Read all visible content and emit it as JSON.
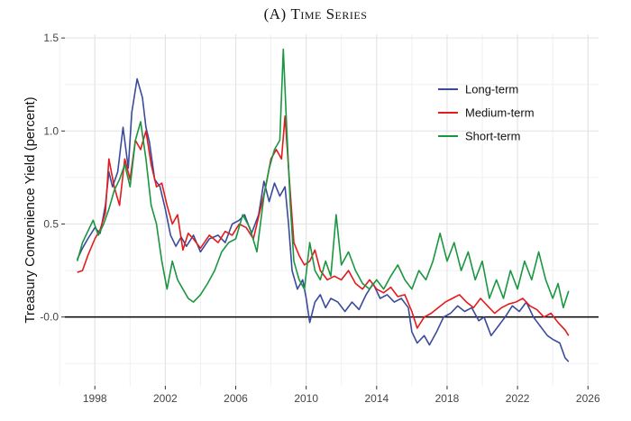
{
  "chart_data": {
    "type": "line",
    "title": "(a) Time Series",
    "xlabel": "",
    "ylabel": "Treasury Convenience Yield (percent)",
    "xlim": [
      1996.3,
      2026.6
    ],
    "ylim": [
      -0.37,
      1.52
    ],
    "x_ticks": [
      "1998",
      "2002",
      "2006",
      "2010",
      "2014",
      "2018",
      "2022",
      "2026"
    ],
    "y_ticks": [
      "-0.0",
      "0.5",
      "1.0",
      "1.5"
    ],
    "y_tick_values": [
      0.0,
      0.5,
      1.0,
      1.5
    ],
    "zero_line": true,
    "grid": true,
    "legend": "top-right",
    "series": [
      {
        "name": "Long-term",
        "color": "#3a4b9c",
        "points": [
          [
            1997.0,
            0.31
          ],
          [
            1997.3,
            0.37
          ],
          [
            1997.6,
            0.42
          ],
          [
            1998.0,
            0.48
          ],
          [
            1998.3,
            0.45
          ],
          [
            1998.6,
            0.6
          ],
          [
            1998.8,
            0.78
          ],
          [
            1999.0,
            0.7
          ],
          [
            1999.3,
            0.78
          ],
          [
            1999.6,
            1.02
          ],
          [
            1999.9,
            0.8
          ],
          [
            2000.1,
            1.1
          ],
          [
            2000.4,
            1.28
          ],
          [
            2000.7,
            1.18
          ],
          [
            2000.9,
            1.02
          ],
          [
            2001.1,
            0.94
          ],
          [
            2001.4,
            0.74
          ],
          [
            2001.7,
            0.7
          ],
          [
            2002.0,
            0.58
          ],
          [
            2002.3,
            0.44
          ],
          [
            2002.6,
            0.38
          ],
          [
            2002.9,
            0.43
          ],
          [
            2003.2,
            0.38
          ],
          [
            2003.6,
            0.44
          ],
          [
            2004.0,
            0.35
          ],
          [
            2004.5,
            0.42
          ],
          [
            2005.0,
            0.44
          ],
          [
            2005.4,
            0.4
          ],
          [
            2005.8,
            0.5
          ],
          [
            2006.2,
            0.52
          ],
          [
            2006.5,
            0.55
          ],
          [
            2006.9,
            0.45
          ],
          [
            2007.3,
            0.55
          ],
          [
            2007.6,
            0.73
          ],
          [
            2007.9,
            0.62
          ],
          [
            2008.2,
            0.72
          ],
          [
            2008.5,
            0.65
          ],
          [
            2008.8,
            0.7
          ],
          [
            2009.0,
            0.5
          ],
          [
            2009.2,
            0.25
          ],
          [
            2009.5,
            0.15
          ],
          [
            2009.8,
            0.2
          ],
          [
            2010.0,
            0.1
          ],
          [
            2010.2,
            -0.03
          ],
          [
            2010.5,
            0.08
          ],
          [
            2010.8,
            0.12
          ],
          [
            2011.1,
            0.05
          ],
          [
            2011.4,
            0.1
          ],
          [
            2011.8,
            0.08
          ],
          [
            2012.2,
            0.03
          ],
          [
            2012.6,
            0.08
          ],
          [
            2013.0,
            0.04
          ],
          [
            2013.4,
            0.12
          ],
          [
            2013.8,
            0.18
          ],
          [
            2014.2,
            0.1
          ],
          [
            2014.6,
            0.12
          ],
          [
            2015.0,
            0.08
          ],
          [
            2015.4,
            0.1
          ],
          [
            2015.8,
            0.05
          ],
          [
            2016.0,
            -0.08
          ],
          [
            2016.3,
            -0.14
          ],
          [
            2016.7,
            -0.1
          ],
          [
            2017.0,
            -0.15
          ],
          [
            2017.4,
            -0.08
          ],
          [
            2017.8,
            0.0
          ],
          [
            2018.2,
            0.02
          ],
          [
            2018.6,
            0.06
          ],
          [
            2019.0,
            0.03
          ],
          [
            2019.4,
            0.05
          ],
          [
            2019.8,
            -0.02
          ],
          [
            2020.1,
            0.0
          ],
          [
            2020.5,
            -0.1
          ],
          [
            2020.9,
            -0.05
          ],
          [
            2021.3,
            0.0
          ],
          [
            2021.7,
            0.06
          ],
          [
            2022.1,
            0.03
          ],
          [
            2022.5,
            0.08
          ],
          [
            2022.9,
            0.0
          ],
          [
            2023.3,
            -0.05
          ],
          [
            2023.7,
            -0.1
          ],
          [
            2024.0,
            -0.12
          ],
          [
            2024.4,
            -0.14
          ],
          [
            2024.7,
            -0.22
          ],
          [
            2024.9,
            -0.24
          ]
        ]
      },
      {
        "name": "Medium-term",
        "color": "#e41a1c",
        "points": [
          [
            1997.0,
            0.24
          ],
          [
            1997.3,
            0.25
          ],
          [
            1997.6,
            0.33
          ],
          [
            1998.0,
            0.42
          ],
          [
            1998.3,
            0.47
          ],
          [
            1998.6,
            0.56
          ],
          [
            1998.8,
            0.85
          ],
          [
            1999.1,
            0.7
          ],
          [
            1999.4,
            0.6
          ],
          [
            1999.7,
            0.85
          ],
          [
            2000.0,
            0.74
          ],
          [
            2000.3,
            0.95
          ],
          [
            2000.6,
            0.9
          ],
          [
            2000.9,
            1.0
          ],
          [
            2001.2,
            0.82
          ],
          [
            2001.5,
            0.7
          ],
          [
            2001.8,
            0.72
          ],
          [
            2002.1,
            0.6
          ],
          [
            2002.4,
            0.5
          ],
          [
            2002.7,
            0.55
          ],
          [
            2003.0,
            0.36
          ],
          [
            2003.3,
            0.45
          ],
          [
            2003.6,
            0.42
          ],
          [
            2004.0,
            0.37
          ],
          [
            2004.5,
            0.44
          ],
          [
            2005.0,
            0.4
          ],
          [
            2005.4,
            0.46
          ],
          [
            2005.8,
            0.44
          ],
          [
            2006.2,
            0.5
          ],
          [
            2006.6,
            0.48
          ],
          [
            2007.0,
            0.42
          ],
          [
            2007.4,
            0.58
          ],
          [
            2007.7,
            0.7
          ],
          [
            2008.0,
            0.85
          ],
          [
            2008.3,
            0.9
          ],
          [
            2008.6,
            0.85
          ],
          [
            2008.8,
            1.08
          ],
          [
            2009.0,
            0.8
          ],
          [
            2009.3,
            0.4
          ],
          [
            2009.6,
            0.33
          ],
          [
            2009.9,
            0.28
          ],
          [
            2010.2,
            0.3
          ],
          [
            2010.5,
            0.36
          ],
          [
            2010.8,
            0.25
          ],
          [
            2011.2,
            0.2
          ],
          [
            2011.6,
            0.22
          ],
          [
            2012.0,
            0.2
          ],
          [
            2012.4,
            0.25
          ],
          [
            2012.8,
            0.18
          ],
          [
            2013.2,
            0.15
          ],
          [
            2013.6,
            0.2
          ],
          [
            2014.0,
            0.15
          ],
          [
            2014.4,
            0.13
          ],
          [
            2014.8,
            0.16
          ],
          [
            2015.2,
            0.11
          ],
          [
            2015.6,
            0.12
          ],
          [
            2016.0,
            0.03
          ],
          [
            2016.3,
            -0.06
          ],
          [
            2016.7,
            0.0
          ],
          [
            2017.1,
            0.02
          ],
          [
            2017.5,
            0.05
          ],
          [
            2017.9,
            0.08
          ],
          [
            2018.3,
            0.1
          ],
          [
            2018.7,
            0.12
          ],
          [
            2019.1,
            0.08
          ],
          [
            2019.5,
            0.05
          ],
          [
            2019.9,
            0.1
          ],
          [
            2020.3,
            0.06
          ],
          [
            2020.7,
            0.02
          ],
          [
            2021.1,
            0.05
          ],
          [
            2021.5,
            0.07
          ],
          [
            2021.9,
            0.08
          ],
          [
            2022.3,
            0.1
          ],
          [
            2022.7,
            0.06
          ],
          [
            2023.1,
            0.04
          ],
          [
            2023.5,
            0.0
          ],
          [
            2023.9,
            0.02
          ],
          [
            2024.3,
            -0.03
          ],
          [
            2024.7,
            -0.07
          ],
          [
            2024.9,
            -0.1
          ]
        ]
      },
      {
        "name": "Short-term",
        "color": "#1a9641",
        "points": [
          [
            1997.0,
            0.3
          ],
          [
            1997.3,
            0.4
          ],
          [
            1997.6,
            0.46
          ],
          [
            1997.9,
            0.52
          ],
          [
            1998.2,
            0.44
          ],
          [
            1998.5,
            0.5
          ],
          [
            1998.8,
            0.58
          ],
          [
            1999.1,
            0.68
          ],
          [
            1999.4,
            0.74
          ],
          [
            1999.7,
            0.82
          ],
          [
            2000.0,
            0.7
          ],
          [
            2000.3,
            0.95
          ],
          [
            2000.6,
            1.05
          ],
          [
            2000.9,
            0.85
          ],
          [
            2001.2,
            0.6
          ],
          [
            2001.5,
            0.5
          ],
          [
            2001.8,
            0.3
          ],
          [
            2002.1,
            0.15
          ],
          [
            2002.4,
            0.3
          ],
          [
            2002.7,
            0.2
          ],
          [
            2003.0,
            0.15
          ],
          [
            2003.3,
            0.1
          ],
          [
            2003.6,
            0.08
          ],
          [
            2004.0,
            0.12
          ],
          [
            2004.4,
            0.18
          ],
          [
            2004.8,
            0.25
          ],
          [
            2005.2,
            0.35
          ],
          [
            2005.6,
            0.4
          ],
          [
            2006.0,
            0.42
          ],
          [
            2006.4,
            0.55
          ],
          [
            2006.8,
            0.48
          ],
          [
            2007.2,
            0.35
          ],
          [
            2007.6,
            0.65
          ],
          [
            2007.9,
            0.8
          ],
          [
            2008.2,
            0.9
          ],
          [
            2008.5,
            0.95
          ],
          [
            2008.7,
            1.44
          ],
          [
            2008.9,
            1.0
          ],
          [
            2009.1,
            0.6
          ],
          [
            2009.3,
            0.3
          ],
          [
            2009.6,
            0.2
          ],
          [
            2009.9,
            0.15
          ],
          [
            2010.2,
            0.4
          ],
          [
            2010.5,
            0.25
          ],
          [
            2010.8,
            0.2
          ],
          [
            2011.1,
            0.3
          ],
          [
            2011.4,
            0.22
          ],
          [
            2011.7,
            0.55
          ],
          [
            2012.0,
            0.28
          ],
          [
            2012.4,
            0.35
          ],
          [
            2012.8,
            0.25
          ],
          [
            2013.2,
            0.18
          ],
          [
            2013.6,
            0.15
          ],
          [
            2014.0,
            0.2
          ],
          [
            2014.4,
            0.15
          ],
          [
            2014.8,
            0.22
          ],
          [
            2015.2,
            0.28
          ],
          [
            2015.6,
            0.2
          ],
          [
            2016.0,
            0.15
          ],
          [
            2016.4,
            0.25
          ],
          [
            2016.8,
            0.2
          ],
          [
            2017.2,
            0.3
          ],
          [
            2017.6,
            0.45
          ],
          [
            2018.0,
            0.3
          ],
          [
            2018.4,
            0.4
          ],
          [
            2018.8,
            0.25
          ],
          [
            2019.2,
            0.35
          ],
          [
            2019.6,
            0.2
          ],
          [
            2020.0,
            0.3
          ],
          [
            2020.4,
            0.1
          ],
          [
            2020.8,
            0.2
          ],
          [
            2021.2,
            0.1
          ],
          [
            2021.6,
            0.25
          ],
          [
            2022.0,
            0.15
          ],
          [
            2022.4,
            0.3
          ],
          [
            2022.8,
            0.2
          ],
          [
            2023.2,
            0.35
          ],
          [
            2023.6,
            0.2
          ],
          [
            2024.0,
            0.1
          ],
          [
            2024.3,
            0.18
          ],
          [
            2024.6,
            0.05
          ],
          [
            2024.9,
            0.14
          ]
        ]
      }
    ]
  }
}
